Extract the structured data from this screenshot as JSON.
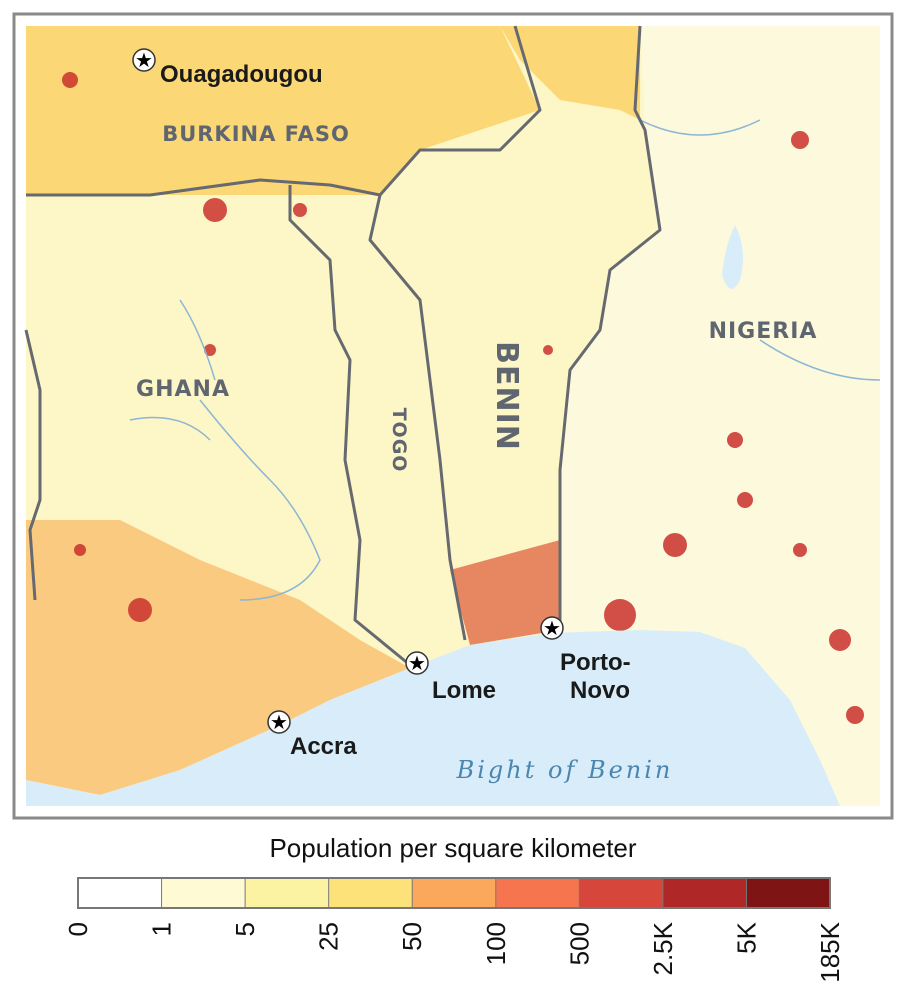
{
  "map": {
    "countries": [
      "BURKINA FASO",
      "GHANA",
      "TOGO",
      "BENIN",
      "NIGERIA"
    ],
    "cities": [
      {
        "label": "Ouagadougou"
      },
      {
        "label": "Lome"
      },
      {
        "label_lines": [
          "Porto-",
          "Novo"
        ]
      },
      {
        "label": "Accra"
      }
    ],
    "water_label": "Bight of Benin"
  },
  "legend": {
    "title": "Population per square kilometer",
    "ticks": [
      0,
      1,
      5,
      25,
      50,
      100,
      500,
      {
        "value": 2500,
        "label": "2.5K"
      },
      {
        "value": 5000,
        "label": "5K"
      },
      {
        "value": 185000,
        "label": "185K"
      }
    ],
    "colors": [
      "#ffffff",
      "#fefbd4",
      "#fcf3a2",
      "#fde27a",
      "#fba85c",
      "#f6754f",
      "#d6463b",
      "#b02727",
      "#7e1414"
    ]
  }
}
